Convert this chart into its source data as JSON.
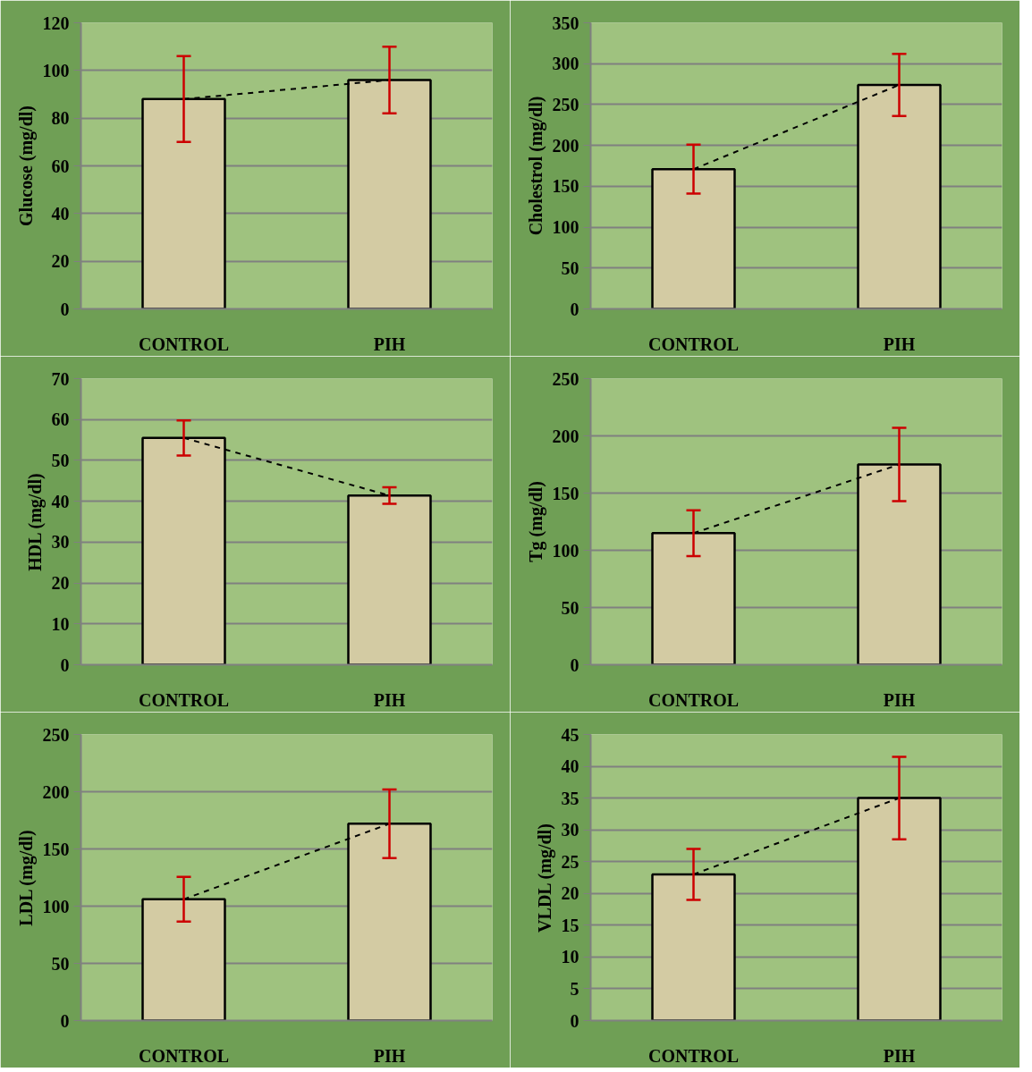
{
  "chart_data": [
    {
      "type": "bar",
      "ylabel": "Glucose (mg/dl)",
      "categories": [
        "CONTROL",
        "PIH"
      ],
      "ylim": [
        0,
        120
      ],
      "yticks": [
        0,
        20,
        40,
        60,
        80,
        100,
        120
      ],
      "grid": "y",
      "series": [
        {
          "color": "#d3cba3",
          "values": [
            88,
            96
          ],
          "errors": [
            18,
            14
          ]
        },
        {
          "type": "line",
          "color": "#000000",
          "values": [
            88,
            96
          ],
          "line_style": "dashed",
          "marker": "none"
        }
      ]
    },
    {
      "type": "bar",
      "ylabel": "Cholestrol (mg/dl)",
      "categories": [
        "CONTROL",
        "PIH"
      ],
      "ylim": [
        0,
        350
      ],
      "yticks": [
        0,
        50,
        100,
        150,
        200,
        250,
        300,
        350
      ],
      "grid": "y",
      "series": [
        {
          "color": "#d3cba3",
          "values": [
            171,
            274
          ],
          "errors": [
            30,
            38
          ]
        },
        {
          "type": "line",
          "color": "#000000",
          "values": [
            171,
            274
          ],
          "line_style": "dashed",
          "marker": "none"
        }
      ]
    },
    {
      "type": "bar",
      "ylabel": "HDL (mg/dl)",
      "categories": [
        "CONTROL",
        "PIH"
      ],
      "ylim": [
        0,
        70
      ],
      "yticks": [
        0,
        10,
        20,
        30,
        40,
        50,
        60,
        70
      ],
      "grid": "y",
      "series": [
        {
          "color": "#d3cba3",
          "values": [
            55.5,
            41.4
          ],
          "errors": [
            4.3,
            2
          ]
        },
        {
          "type": "line",
          "color": "#000000",
          "values": [
            55.5,
            41.4
          ],
          "line_style": "dashed",
          "marker": "none"
        }
      ]
    },
    {
      "type": "bar",
      "ylabel": "Tg (mg/dl)",
      "categories": [
        "CONTROL",
        "PIH"
      ],
      "ylim": [
        0,
        250
      ],
      "yticks": [
        0,
        50,
        100,
        150,
        200,
        250
      ],
      "grid": "y",
      "series": [
        {
          "color": "#d3cba3",
          "values": [
            115,
            175
          ],
          "errors": [
            20,
            32
          ]
        },
        {
          "type": "line",
          "color": "#000000",
          "values": [
            115,
            175
          ],
          "line_style": "dashed",
          "marker": "none"
        }
      ]
    },
    {
      "type": "bar",
      "ylabel": "LDL (mg/dl)",
      "categories": [
        "CONTROL",
        "PIH"
      ],
      "ylim": [
        0,
        250
      ],
      "yticks": [
        0,
        50,
        100,
        150,
        200,
        250
      ],
      "grid": "y",
      "series": [
        {
          "color": "#d3cba3",
          "values": [
            106,
            172
          ],
          "errors": [
            19.5,
            30
          ]
        },
        {
          "type": "line",
          "color": "#000000",
          "values": [
            106,
            172
          ],
          "line_style": "dashed",
          "marker": "none"
        }
      ]
    },
    {
      "type": "bar",
      "ylabel": "VLDL (mg/dl)",
      "categories": [
        "CONTROL",
        "PIH"
      ],
      "ylim": [
        0,
        45
      ],
      "yticks": [
        0,
        5,
        10,
        15,
        20,
        25,
        30,
        35,
        40,
        45
      ],
      "grid": "y",
      "series": [
        {
          "color": "#d3cba3",
          "values": [
            23,
            35
          ],
          "errors": [
            4,
            6.5
          ]
        },
        {
          "type": "line",
          "color": "#000000",
          "values": [
            23,
            35
          ],
          "line_style": "dashed",
          "marker": "none"
        }
      ]
    }
  ]
}
